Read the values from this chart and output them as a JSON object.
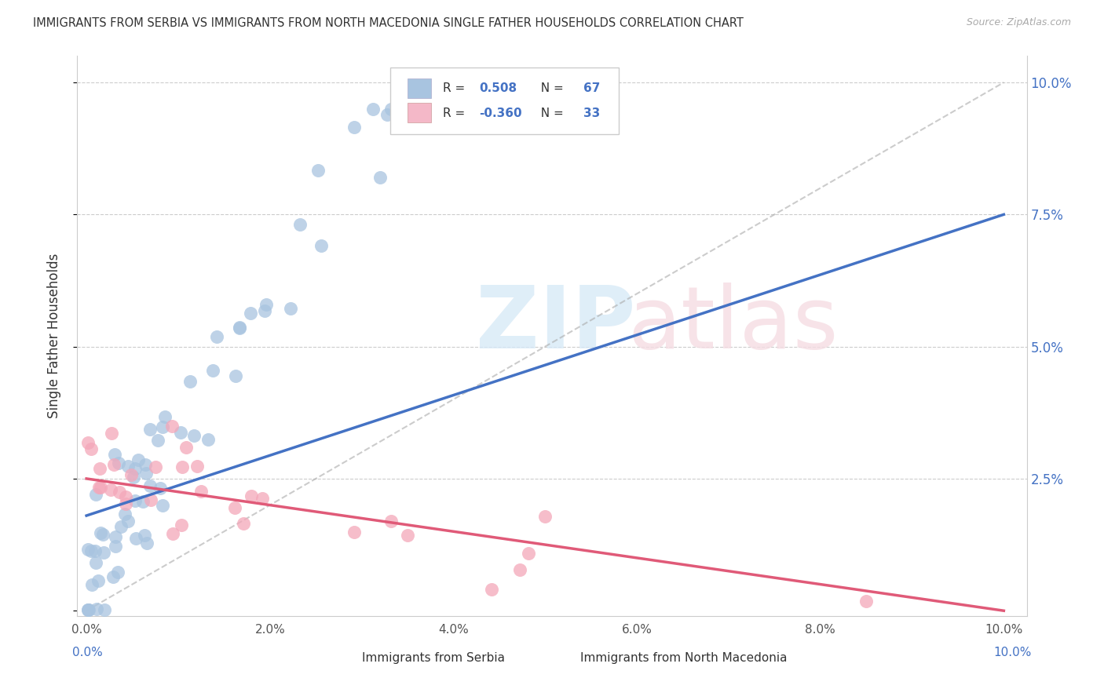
{
  "title": "IMMIGRANTS FROM SERBIA VS IMMIGRANTS FROM NORTH MACEDONIA SINGLE FATHER HOUSEHOLDS CORRELATION CHART",
  "source": "Source: ZipAtlas.com",
  "ylabel": "Single Father Households",
  "serbia_color": "#a8c4e0",
  "serbia_line_color": "#4472c4",
  "macedonia_color": "#f4a7b9",
  "macedonia_line_color": "#e05a78",
  "serbia_R": 0.508,
  "serbia_N": 67,
  "macedonia_R": -0.36,
  "macedonia_N": 33,
  "legend_serbia_patch": "#a8c4e0",
  "legend_macedonia_patch": "#f4b8c8",
  "y_ticks": [
    0.0,
    0.025,
    0.05,
    0.075,
    0.1
  ],
  "x_ticks": [
    0.0,
    0.02,
    0.04,
    0.06,
    0.08,
    0.1
  ],
  "serbia_line_x": [
    0.0,
    0.1
  ],
  "serbia_line_y": [
    0.018,
    0.075
  ],
  "macedonia_line_x": [
    0.0,
    0.1
  ],
  "macedonia_line_y": [
    0.025,
    0.0
  ]
}
